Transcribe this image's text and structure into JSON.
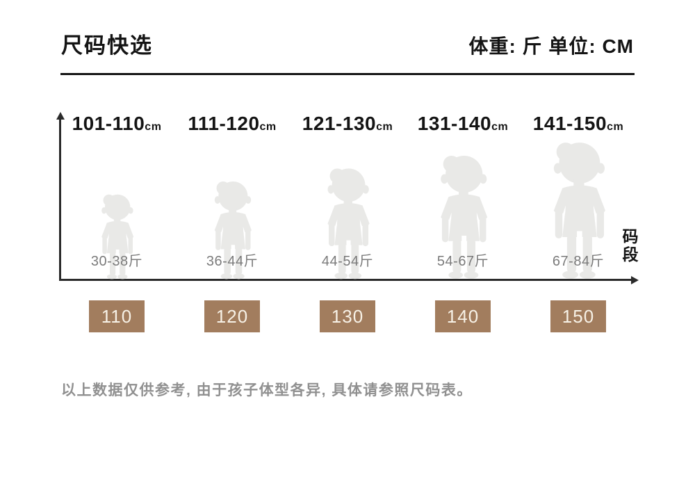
{
  "header": {
    "title": "尺码快选",
    "units_note": "体重: 斤 单位: CM"
  },
  "chart_data": {
    "type": "table",
    "title": "尺码快选",
    "x_axis_label": "码段",
    "height_unit_note": "CM",
    "weight_unit_note": "斤",
    "legend_position": "none",
    "grid": false,
    "columns": [
      {
        "size_label": "110",
        "height_range": "101-110",
        "height_unit": "cm",
        "weight_range": "30-38斤"
      },
      {
        "size_label": "120",
        "height_range": "111-120",
        "height_unit": "cm",
        "weight_range": "36-44斤"
      },
      {
        "size_label": "130",
        "height_range": "121-130",
        "height_unit": "cm",
        "weight_range": "44-54斤"
      },
      {
        "size_label": "140",
        "height_range": "131-140",
        "height_unit": "cm",
        "weight_range": "54-67斤"
      },
      {
        "size_label": "150",
        "height_range": "141-150",
        "height_unit": "cm",
        "weight_range": "67-84斤"
      }
    ]
  },
  "footnote": "以上数据仅供参考, 由于孩子体型各异, 具体请参照尺码表。",
  "colors": {
    "size_box": "#a27d5e",
    "size_box_text": "#f7f1e6",
    "silhouette": "#e9e9e7",
    "axis": "#2b2b2b",
    "heading_text": "#141414",
    "weight_text": "#7b7b7b",
    "footnote_text": "#909090"
  }
}
